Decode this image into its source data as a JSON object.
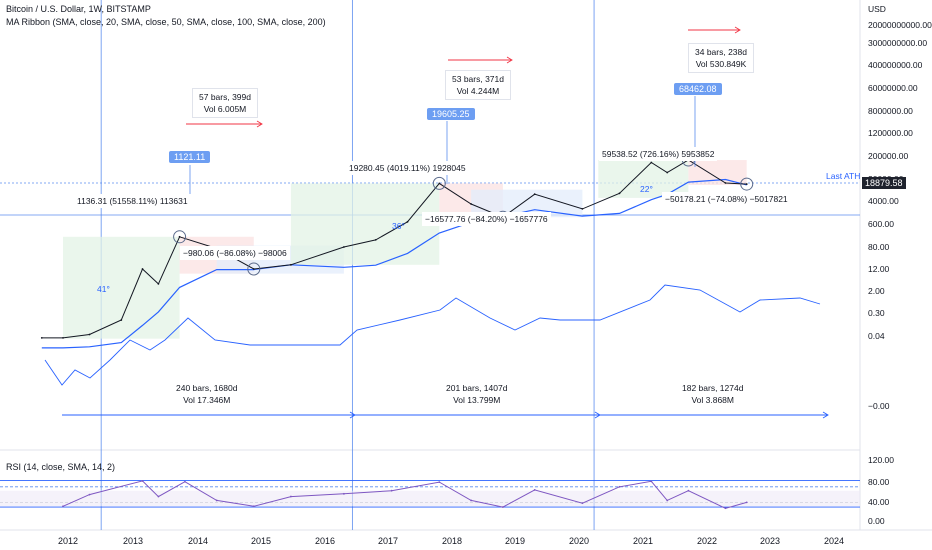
{
  "chart": {
    "symbol": "Bitcoin / U.S. Dollar, 1W, BITSTAMP",
    "ma_ribbon": "MA Ribbon (SMA, close, 20, SMA, close, 50, SMA, close, 100, SMA, close, 200)",
    "rsi": "RSI (14, close, SMA, 14, 2)",
    "currency": "USD",
    "last_price": "18879.58",
    "last_ath_label": "Last ATH"
  },
  "colors": {
    "price_line": "#131722",
    "ma_line": "#2962ff",
    "accent": "#2962ff",
    "rsi_line": "#7e57c2",
    "green_zone": "#e3f3e6",
    "red_zone": "#fbe2e2",
    "blue_zone": "#e3ecfb",
    "arrow_red": "#f23645"
  },
  "annotations": {
    "stat_2013_range": "57 bars, 399d",
    "stat_2013_vol": "Vol 6.005M",
    "stat_2017_range": "53 bars, 371d",
    "stat_2017_vol": "Vol 4.244M",
    "stat_2021_range": "34 bars, 238d",
    "stat_2021_vol": "Vol 530.849K",
    "peak_2013": "1121.11",
    "peak_2017": "19605.25",
    "peak_2021": "68462.08",
    "gain_2013": "1136.31 (51558.11%) 113631",
    "drop_2013": "−980.06 (−86.08%) −98006",
    "gain_2017": "19280.45 (4019.11%) 1928045",
    "drop_2017": "−16577.76 (−84.20%) −1657776",
    "gain_2021": "59538.52 (726.16%) 5953852",
    "drop_2021": "−50178.21 (−74.08%) −5017821",
    "cycle1_range": "240 bars, 1680d",
    "cycle1_vol": "Vol 17.346M",
    "cycle2_range": "201 bars, 1407d",
    "cycle2_vol": "Vol 13.799M",
    "cycle3_range": "182 bars, 1274d",
    "cycle3_vol": "Vol 3.868M",
    "angle_2013": "41°",
    "angle_2017": "36°",
    "angle_2021": "22°"
  },
  "price_axis": [
    "20000000000.00",
    "3000000000.00",
    "400000000.00",
    "60000000.00",
    "8000000.00",
    "1200000.00",
    "200000.00",
    "20000.00",
    "4000.00",
    "600.00",
    "80.00",
    "12.00",
    "2.00",
    "0.30",
    "0.04",
    "−0.00"
  ],
  "rsi_axis": [
    "120.00",
    "80.00",
    "40.00",
    "0.00"
  ],
  "x_axis": [
    "2012",
    "2013",
    "2014",
    "2015",
    "2016",
    "2017",
    "2018",
    "2019",
    "2020",
    "2021",
    "2022",
    "2023",
    "2024"
  ],
  "chart_data": [
    {
      "type": "line",
      "title": "Bitcoin / U.S. Dollar, 1W, BITSTAMP",
      "scale": "log",
      "x": [
        "2011-09",
        "2012-01",
        "2012-06",
        "2012-12",
        "2013-04",
        "2013-07",
        "2013-11",
        "2014-06",
        "2015-01",
        "2015-08",
        "2016-06",
        "2016-12",
        "2017-06",
        "2017-12",
        "2018-06",
        "2018-12",
        "2019-06",
        "2020-03",
        "2020-10",
        "2021-04",
        "2021-07",
        "2021-11",
        "2022-06",
        "2022-10"
      ],
      "series": [
        {
          "name": "BTC/USD",
          "values": [
            5,
            5,
            6,
            13,
            200,
            90,
            1121,
            600,
            200,
            250,
            650,
            950,
            2500,
            19605,
            6500,
            3200,
            11000,
            5000,
            11500,
            60000,
            35000,
            68462,
            20000,
            18879
          ]
        }
      ],
      "annotations": [
        "1121.11",
        "19605.25",
        "68462.08"
      ]
    },
    {
      "type": "line",
      "title": "RSI (14, close, SMA, 14, 2)",
      "ylim": [
        0,
        120
      ],
      "x": [
        "2012-01",
        "2012-06",
        "2013-04",
        "2013-07",
        "2013-12",
        "2014-06",
        "2015-01",
        "2015-08",
        "2016-06",
        "2017-03",
        "2017-12",
        "2018-06",
        "2018-12",
        "2019-06",
        "2020-03",
        "2020-10",
        "2021-04",
        "2021-07",
        "2021-11",
        "2022-06",
        "2022-10"
      ],
      "series": [
        {
          "name": "RSI",
          "values": [
            30,
            60,
            95,
            55,
            93,
            45,
            30,
            55,
            62,
            70,
            92,
            45,
            28,
            72,
            38,
            80,
            94,
            45,
            70,
            25,
            40
          ]
        }
      ]
    }
  ]
}
